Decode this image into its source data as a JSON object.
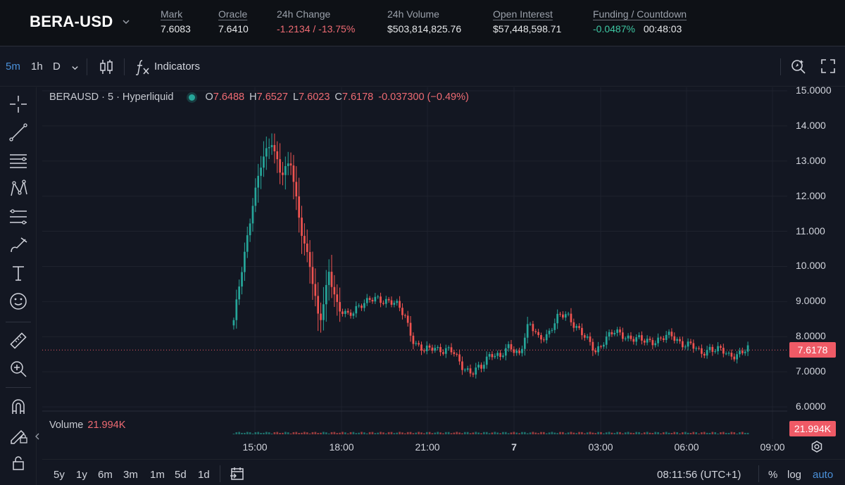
{
  "header": {
    "pair": "BERA-USD",
    "stats": [
      {
        "label": "Mark",
        "value": "7.6083"
      },
      {
        "label": "Oracle",
        "value": "7.6410"
      },
      {
        "label": "24h Change",
        "value": "-1.2134 / -13.75%"
      },
      {
        "label": "24h Volume",
        "value": "$503,814,825.76"
      },
      {
        "label": "Open Interest",
        "value": "$57,448,598.71"
      },
      {
        "label": "Funding / Countdown",
        "funding": "-0.0487%",
        "countdown": "00:48:03"
      }
    ]
  },
  "toolbar": {
    "intervals": [
      "5m",
      "1h",
      "D"
    ],
    "indicators_label": "Indicators"
  },
  "legend": {
    "symbol": "BERAUSD · 5 · Hyperliquid",
    "o_label": "O",
    "o": "7.6488",
    "h_label": "H",
    "h": "7.6527",
    "l_label": "L",
    "l": "7.6023",
    "c_label": "C",
    "c": "7.6178",
    "change": "-0.037300 (−0.49%)",
    "volume_label": "Volume",
    "volume": "21.994K"
  },
  "price_axis": [
    "15.0000",
    "14.000",
    "13.000",
    "12.000",
    "11.000",
    "10.000",
    "9.0000",
    "8.0000",
    "7.0000",
    "6.0000"
  ],
  "time_axis": [
    "15:00",
    "18:00",
    "21:00",
    "7",
    "03:00",
    "06:00",
    "09:00"
  ],
  "last_price_tag": "7.6178",
  "volume_tag": "21.994K",
  "bottom": {
    "ranges": [
      "5y",
      "1y",
      "6m",
      "3m",
      "1m",
      "5d",
      "1d"
    ],
    "clock": "08:11:56 (UTC+1)",
    "percent": "%",
    "log": "log",
    "auto": "auto"
  },
  "colors": {
    "up": "#26a69a",
    "down": "#ef5350",
    "accent": "#4a90d9"
  },
  "chart_data": {
    "type": "candlestick",
    "symbol": "BERAUSD",
    "interval": "5",
    "ylim": [
      6,
      15
    ],
    "x": [
      "14:40",
      "14:50",
      "15:00",
      "15:05",
      "15:10",
      "15:20",
      "15:30",
      "15:45",
      "16:00",
      "16:15",
      "16:30",
      "16:45",
      "17:00",
      "17:15",
      "17:30",
      "17:45",
      "18:00",
      "18:20",
      "18:40",
      "19:00",
      "19:20",
      "19:40",
      "20:00",
      "20:20",
      "20:40",
      "21:00",
      "21:20",
      "21:40",
      "22:00",
      "22:20",
      "22:40",
      "23:00",
      "23:20",
      "23:40",
      "00:00",
      "00:20",
      "00:40",
      "01:00",
      "01:20",
      "01:40",
      "02:00",
      "02:20",
      "02:40",
      "03:00",
      "03:30",
      "04:00",
      "04:30",
      "05:00",
      "05:30",
      "06:00",
      "06:30",
      "07:00",
      "07:30",
      "08:00",
      "08:10"
    ],
    "close": [
      8.4,
      10.2,
      11.8,
      13.0,
      13.6,
      12.6,
      12.9,
      11.2,
      10.0,
      8.3,
      9.9,
      8.7,
      8.6,
      8.9,
      8.95,
      9.1,
      9.05,
      8.9,
      8.6,
      7.8,
      7.55,
      7.75,
      7.6,
      7.55,
      7.2,
      6.95,
      7.1,
      7.6,
      7.4,
      7.7,
      7.55,
      8.35,
      7.95,
      8.1,
      8.5,
      8.65,
      8.3,
      7.9,
      7.6,
      7.95,
      8.1,
      8.05,
      7.95,
      7.85,
      7.9,
      7.95,
      8.0,
      7.85,
      7.75,
      7.5,
      7.7,
      7.6,
      7.45,
      7.55,
      7.6178
    ],
    "volume_last": "21.994K"
  }
}
